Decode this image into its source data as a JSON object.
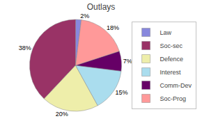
{
  "chart_data": {
    "type": "pie",
    "title": "Outlays",
    "categories": [
      "Law",
      "Soc-sec",
      "Defence",
      "Interest",
      "Comm-Dev",
      "Soc-Prog"
    ],
    "values": [
      2,
      38,
      20,
      15,
      7,
      18
    ],
    "value_labels": [
      "2%",
      "38%",
      "20%",
      "15%",
      "7%",
      "18%"
    ],
    "colors": [
      "#8888dd",
      "#993366",
      "#eeeeaa",
      "#aaddee",
      "#660066",
      "#ff9999"
    ],
    "data_labels": true,
    "legend": "right"
  }
}
